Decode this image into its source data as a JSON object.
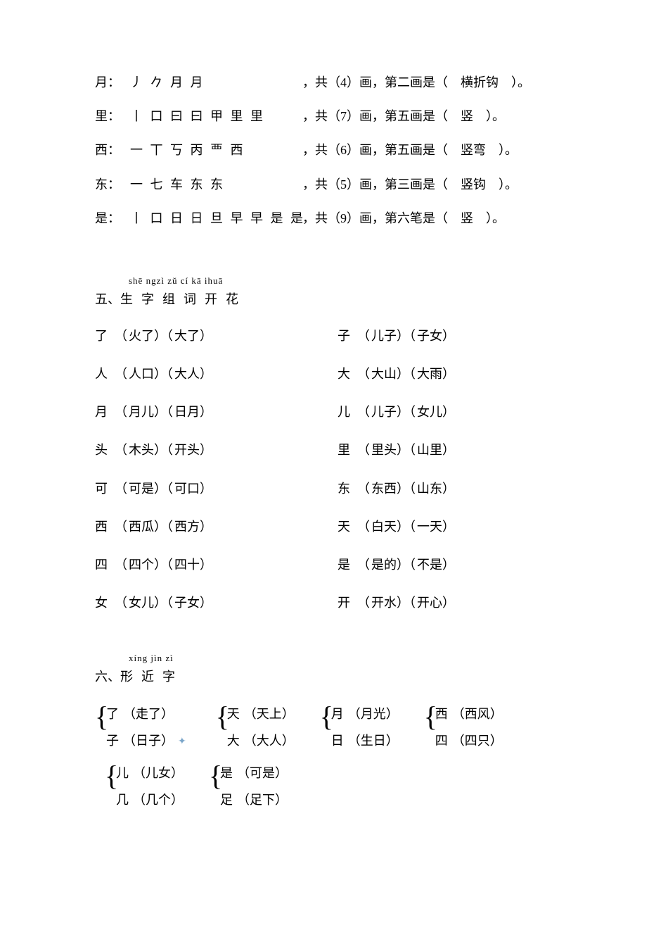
{
  "strokeRows": [
    {
      "char": "月",
      "strokes": "丿 𠂊 月 月",
      "count": "4",
      "nth": "二",
      "name": "横折钩"
    },
    {
      "char": "里",
      "strokes": "丨 口 曰 曰 甲 里 里",
      "count": "7",
      "nth": "五",
      "name": "竖"
    },
    {
      "char": "西",
      "strokes": "一 丅 丂 丙 覀 西",
      "count": "6",
      "nth": "五",
      "name": "竖弯"
    },
    {
      "char": "东",
      "strokes": "一 七 车 东 东",
      "count": "5",
      "nth": "三",
      "name": "竖钩"
    },
    {
      "char": "是",
      "strokes": "丨 口 日 日 旦 早 早 是 是",
      "count": "9",
      "nth": "六",
      "nthLabel": "笔",
      "name": "竖"
    }
  ],
  "section5": {
    "num": "五、",
    "pinyin": "shē ngzì zǔ cí kā ihuā",
    "title": "生字组词开花",
    "rows": [
      {
        "lChar": "了",
        "lW1": "火了",
        "lW2": "大了",
        "rChar": "子",
        "rW1": "儿子",
        "rW2": "子女"
      },
      {
        "lChar": "人",
        "lW1": "人口",
        "lW2": "大人",
        "rChar": "大",
        "rW1": "大山",
        "rW2": "大雨"
      },
      {
        "lChar": "月",
        "lW1": "月儿",
        "lW2": "日月",
        "rChar": "儿",
        "rW1": "儿子",
        "rW2": "女儿"
      },
      {
        "lChar": "头",
        "lW1": "木头",
        "lW2": "开头",
        "rChar": "里",
        "rW1": "里头",
        "rW2": "山里"
      },
      {
        "lChar": "可",
        "lW1": "可是",
        "lW2": "可口",
        "rChar": "东",
        "rW1": "东西",
        "rW2": "山东"
      },
      {
        "lChar": "西",
        "lW1": "西瓜",
        "lW2": "西方",
        "rChar": "天",
        "rW1": "白天",
        "rW2": "一天"
      },
      {
        "lChar": "四",
        "lW1": "四个",
        "lW2": "四十",
        "rChar": "是",
        "rW1": "是的",
        "rW2": "不是"
      },
      {
        "lChar": "女",
        "lW1": "女儿",
        "lW2": "子女",
        "rChar": "开",
        "rW1": "开水",
        "rW2": "开心"
      }
    ]
  },
  "section6": {
    "num": "六、",
    "pinyin": "xíng jìn zì",
    "title": "形近字",
    "row1": [
      {
        "aChar": "了",
        "aW": "走了",
        "bChar": "子",
        "bW": "日子"
      },
      {
        "aChar": "天",
        "aW": "天上",
        "bChar": "大",
        "bW": "大人"
      },
      {
        "aChar": "月",
        "aW": "月光",
        "bChar": "日",
        "bW": "生日"
      },
      {
        "aChar": "西",
        "aW": "西风",
        "bChar": "四",
        "bW": "四只"
      }
    ],
    "row2": [
      {
        "aChar": "儿",
        "aW": "儿女",
        "bChar": "几",
        "bW": "几个"
      },
      {
        "aChar": "是",
        "aW": "可是",
        "bChar": "足",
        "bW": "足下"
      }
    ]
  },
  "labels": {
    "comma": "：",
    "gong": "共",
    "hua": "画",
    "di": "第",
    "huaIs": "画是",
    "biIs": "笔是",
    "leftParen": "（",
    "rightParen": "）",
    "period": "。",
    "zhComma": "，"
  }
}
